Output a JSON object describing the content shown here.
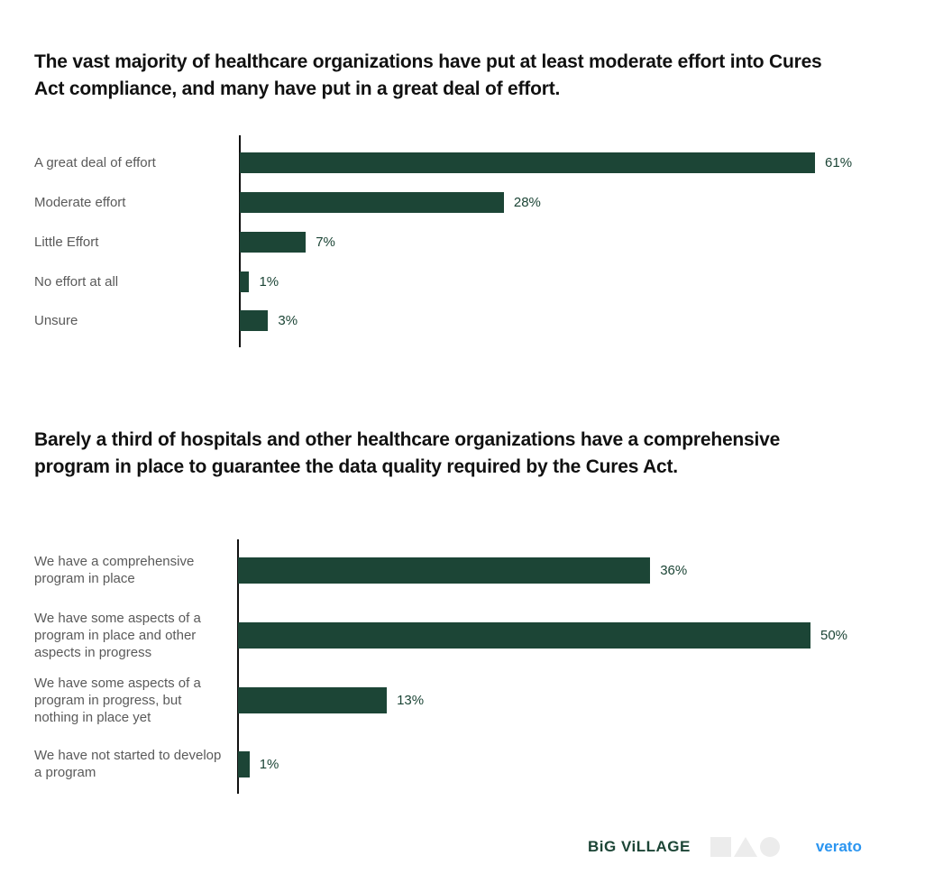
{
  "chart_data": [
    {
      "type": "bar",
      "orientation": "horizontal",
      "title": "The vast majority of healthcare organizations have put at least moderate effort into Cures Act compliance, and many have put in a great deal of effort.",
      "categories": [
        "A great deal of effort",
        "Moderate effort",
        "Little Effort",
        "No effort at all",
        "Unsure"
      ],
      "values": [
        61,
        28,
        7,
        1,
        3
      ],
      "labels": [
        "61%",
        "28%",
        "7%",
        "1%",
        "3%"
      ],
      "unit": "%",
      "xlim": [
        0,
        61
      ],
      "grid": false,
      "color": "#1c4536"
    },
    {
      "type": "bar",
      "orientation": "horizontal",
      "title": "Barely a third of hospitals and other healthcare organizations have a comprehensive program in place to guarantee the data quality required by the Cures Act.",
      "categories": [
        "We have a comprehensive program in place",
        "We have some aspects of a program in place and other aspects in progress",
        "We have some aspects of a program in progress, but nothing in place yet",
        "We have not started to develop a program"
      ],
      "values": [
        36,
        50,
        13,
        1
      ],
      "labels": [
        "36%",
        "50%",
        "13%",
        "1%"
      ],
      "unit": "%",
      "xlim": [
        0,
        50
      ],
      "grid": false,
      "color": "#1c4536"
    }
  ],
  "logos": {
    "big_village": "BiG ViLLAGE",
    "verato": "verato"
  }
}
